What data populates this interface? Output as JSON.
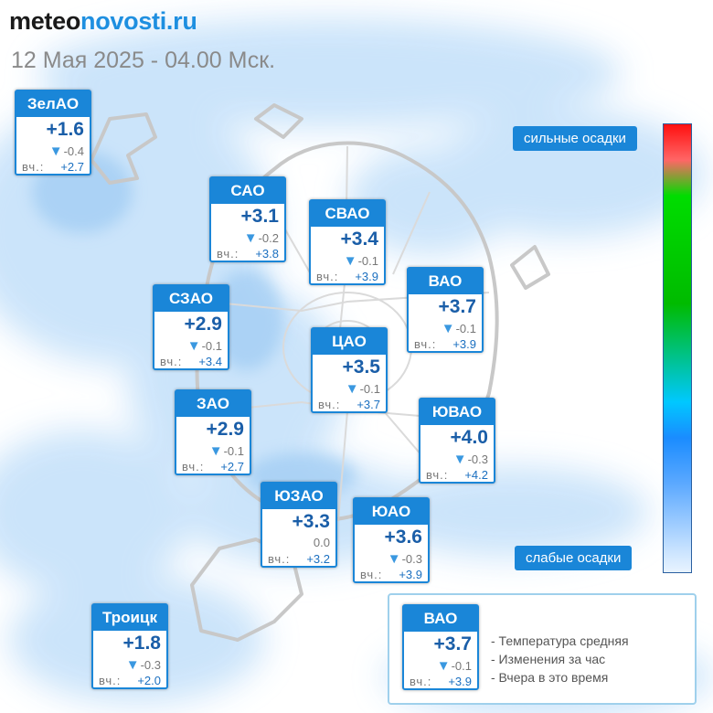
{
  "brand": {
    "part1": "meteo",
    "part2": "novosti.ru"
  },
  "datetime": "12 Мая 2025 - 04.00 Мск.",
  "scale": {
    "strong_label": "сильные осадки",
    "weak_label": "слабые осадки"
  },
  "yesterday_label": "вч.:",
  "districts": {
    "zelao": {
      "name": "ЗелАО",
      "temp": "+1.6",
      "change": "-0.4",
      "trend": "down",
      "yesterday": "+2.7"
    },
    "sao": {
      "name": "САО",
      "temp": "+3.1",
      "change": "-0.2",
      "trend": "down",
      "yesterday": "+3.8"
    },
    "svao": {
      "name": "СВАО",
      "temp": "+3.4",
      "change": "-0.1",
      "trend": "down",
      "yesterday": "+3.9"
    },
    "vao": {
      "name": "ВАО",
      "temp": "+3.7",
      "change": "-0.1",
      "trend": "down",
      "yesterday": "+3.9"
    },
    "szao": {
      "name": "СЗАО",
      "temp": "+2.9",
      "change": "-0.1",
      "trend": "down",
      "yesterday": "+3.4"
    },
    "tsao": {
      "name": "ЦАО",
      "temp": "+3.5",
      "change": "-0.1",
      "trend": "down",
      "yesterday": "+3.7"
    },
    "zao": {
      "name": "ЗАО",
      "temp": "+2.9",
      "change": "-0.1",
      "trend": "down",
      "yesterday": "+2.7"
    },
    "yuvao": {
      "name": "ЮВАО",
      "temp": "+4.0",
      "change": "-0.3",
      "trend": "down",
      "yesterday": "+4.2"
    },
    "yuzao": {
      "name": "ЮЗАО",
      "temp": "+3.3",
      "change": "0.0",
      "trend": "none",
      "yesterday": "+3.2"
    },
    "yuao": {
      "name": "ЮАО",
      "temp": "+3.6",
      "change": "-0.3",
      "trend": "down",
      "yesterday": "+3.9"
    },
    "troitsk": {
      "name": "Троицк",
      "temp": "+1.8",
      "change": "-0.3",
      "trend": "down",
      "yesterday": "+2.0"
    }
  },
  "legend": {
    "example": {
      "name": "ВАО",
      "temp": "+3.7",
      "change": "-0.1",
      "trend": "down",
      "yesterday": "+3.9"
    },
    "items": [
      "- Температура средняя",
      "- Изменения за час",
      "- Вчера в это время"
    ]
  }
}
